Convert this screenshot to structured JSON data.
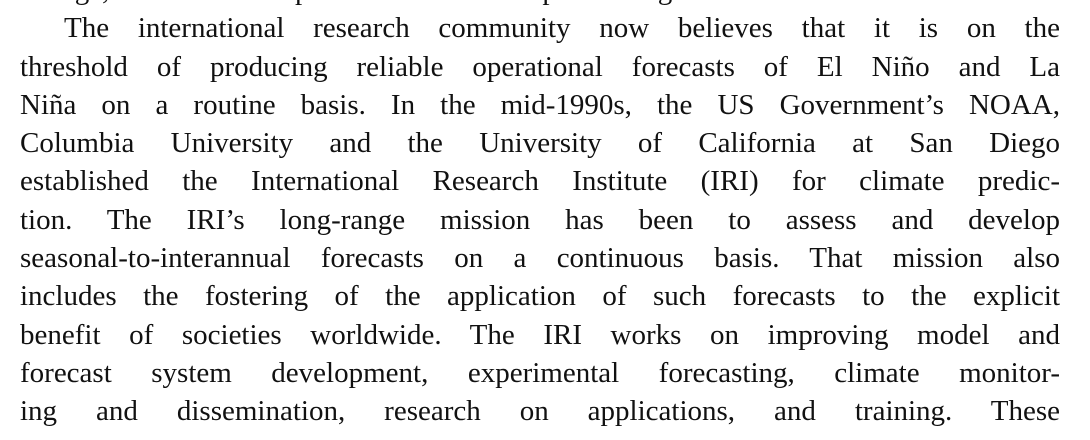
{
  "paragraph": {
    "lines": [
      "change, and coupled ocean-atmosphere general circulation models.",
      "The international research community now believes that it is on the",
      "threshold of producing reliable operational forecasts of El Niño and La",
      "Niña on a routine basis. In the mid-1990s, the US Government’s NOAA,",
      "Columbia University and the University of California at San Diego",
      "established the International Research Institute (IRI) for climate predic-",
      "tion. The IRI’s long-range mission has been to assess and develop",
      "seasonal-to-interannual forecasts on a continuous basis. That mission also",
      "includes the fostering of the application of such forecasts to the explicit",
      "benefit of societies worldwide. The IRI works on improving model and",
      "forecast system development, experimental forecasting, climate monitor-",
      "ing and dissemination, research on applications, and training. These"
    ]
  }
}
